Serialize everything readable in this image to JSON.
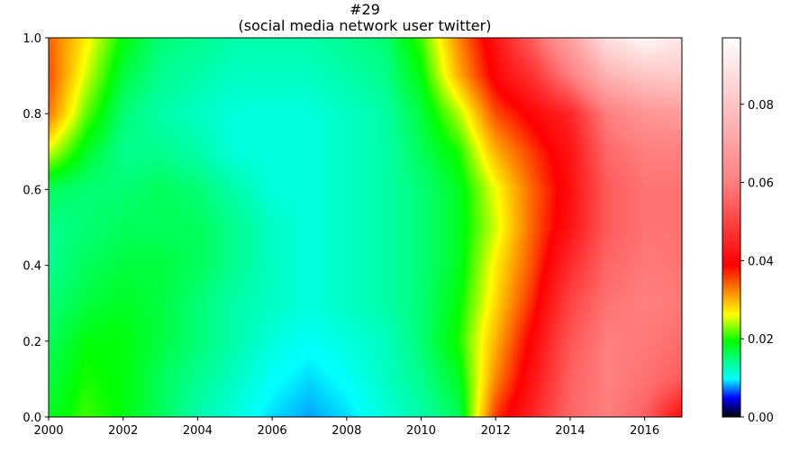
{
  "chart_data": {
    "type": "heatmap",
    "title": "#29",
    "subtitle": "(social media network user twitter)",
    "xlabel": "",
    "ylabel": "",
    "xlim": [
      2000,
      2017
    ],
    "ylim": [
      0,
      1
    ],
    "x_ticks": [
      "2000",
      "2002",
      "2004",
      "2006",
      "2008",
      "2010",
      "2012",
      "2014",
      "2016"
    ],
    "y_ticks": [
      "0.0",
      "0.2",
      "0.4",
      "0.6",
      "0.8",
      "1.0"
    ],
    "colorbar": {
      "range": [
        0,
        0.097
      ],
      "ticks": [
        "0.00",
        "0.02",
        "0.04",
        "0.06",
        "0.08"
      ],
      "colormap": [
        "#000000",
        "#0000ff",
        "#00ffff",
        "#00ff00",
        "#ffff00",
        "#ff0000",
        "#ff8080",
        "#ffffff"
      ]
    },
    "grid": false,
    "legend": "none",
    "x": [
      2000,
      2001,
      2002,
      2003,
      2004,
      2005,
      2006,
      2007,
      2008,
      2009,
      2010,
      2011,
      2012,
      2013,
      2014,
      2015,
      2016,
      2017
    ],
    "y": [
      0.0,
      0.1,
      0.2,
      0.3,
      0.4,
      0.5,
      0.6,
      0.7,
      0.8,
      0.9,
      1.0
    ],
    "z": [
      [
        0.018,
        0.021,
        0.019,
        0.016,
        0.013,
        0.011,
        0.009,
        0.008,
        0.009,
        0.011,
        0.013,
        0.016,
        0.036,
        0.045,
        0.056,
        0.06,
        0.055,
        0.04
      ],
      [
        0.017,
        0.02,
        0.019,
        0.016,
        0.014,
        0.012,
        0.01,
        0.009,
        0.01,
        0.012,
        0.014,
        0.018,
        0.032,
        0.042,
        0.055,
        0.06,
        0.058,
        0.054
      ],
      [
        0.016,
        0.019,
        0.019,
        0.017,
        0.015,
        0.013,
        0.011,
        0.01,
        0.011,
        0.012,
        0.015,
        0.02,
        0.03,
        0.04,
        0.053,
        0.06,
        0.059,
        0.057
      ],
      [
        0.015,
        0.017,
        0.018,
        0.017,
        0.015,
        0.013,
        0.012,
        0.011,
        0.012,
        0.013,
        0.015,
        0.019,
        0.028,
        0.037,
        0.05,
        0.058,
        0.06,
        0.059
      ],
      [
        0.014,
        0.016,
        0.017,
        0.017,
        0.016,
        0.014,
        0.012,
        0.011,
        0.012,
        0.013,
        0.015,
        0.018,
        0.027,
        0.035,
        0.046,
        0.056,
        0.059,
        0.058
      ],
      [
        0.014,
        0.015,
        0.016,
        0.016,
        0.016,
        0.014,
        0.012,
        0.011,
        0.012,
        0.013,
        0.015,
        0.018,
        0.025,
        0.034,
        0.042,
        0.054,
        0.058,
        0.058
      ],
      [
        0.016,
        0.015,
        0.015,
        0.016,
        0.015,
        0.013,
        0.011,
        0.011,
        0.012,
        0.013,
        0.015,
        0.018,
        0.026,
        0.034,
        0.041,
        0.054,
        0.058,
        0.058
      ],
      [
        0.025,
        0.018,
        0.014,
        0.014,
        0.013,
        0.011,
        0.011,
        0.011,
        0.012,
        0.013,
        0.016,
        0.02,
        0.03,
        0.036,
        0.042,
        0.056,
        0.06,
        0.06
      ],
      [
        0.033,
        0.022,
        0.015,
        0.013,
        0.012,
        0.011,
        0.011,
        0.011,
        0.012,
        0.013,
        0.017,
        0.024,
        0.035,
        0.04,
        0.045,
        0.06,
        0.066,
        0.068
      ],
      [
        0.035,
        0.025,
        0.017,
        0.014,
        0.013,
        0.012,
        0.012,
        0.012,
        0.013,
        0.014,
        0.019,
        0.03,
        0.04,
        0.047,
        0.06,
        0.075,
        0.08,
        0.082
      ],
      [
        0.034,
        0.027,
        0.019,
        0.015,
        0.014,
        0.013,
        0.013,
        0.013,
        0.014,
        0.015,
        0.021,
        0.032,
        0.042,
        0.055,
        0.07,
        0.088,
        0.095,
        0.09
      ]
    ]
  }
}
